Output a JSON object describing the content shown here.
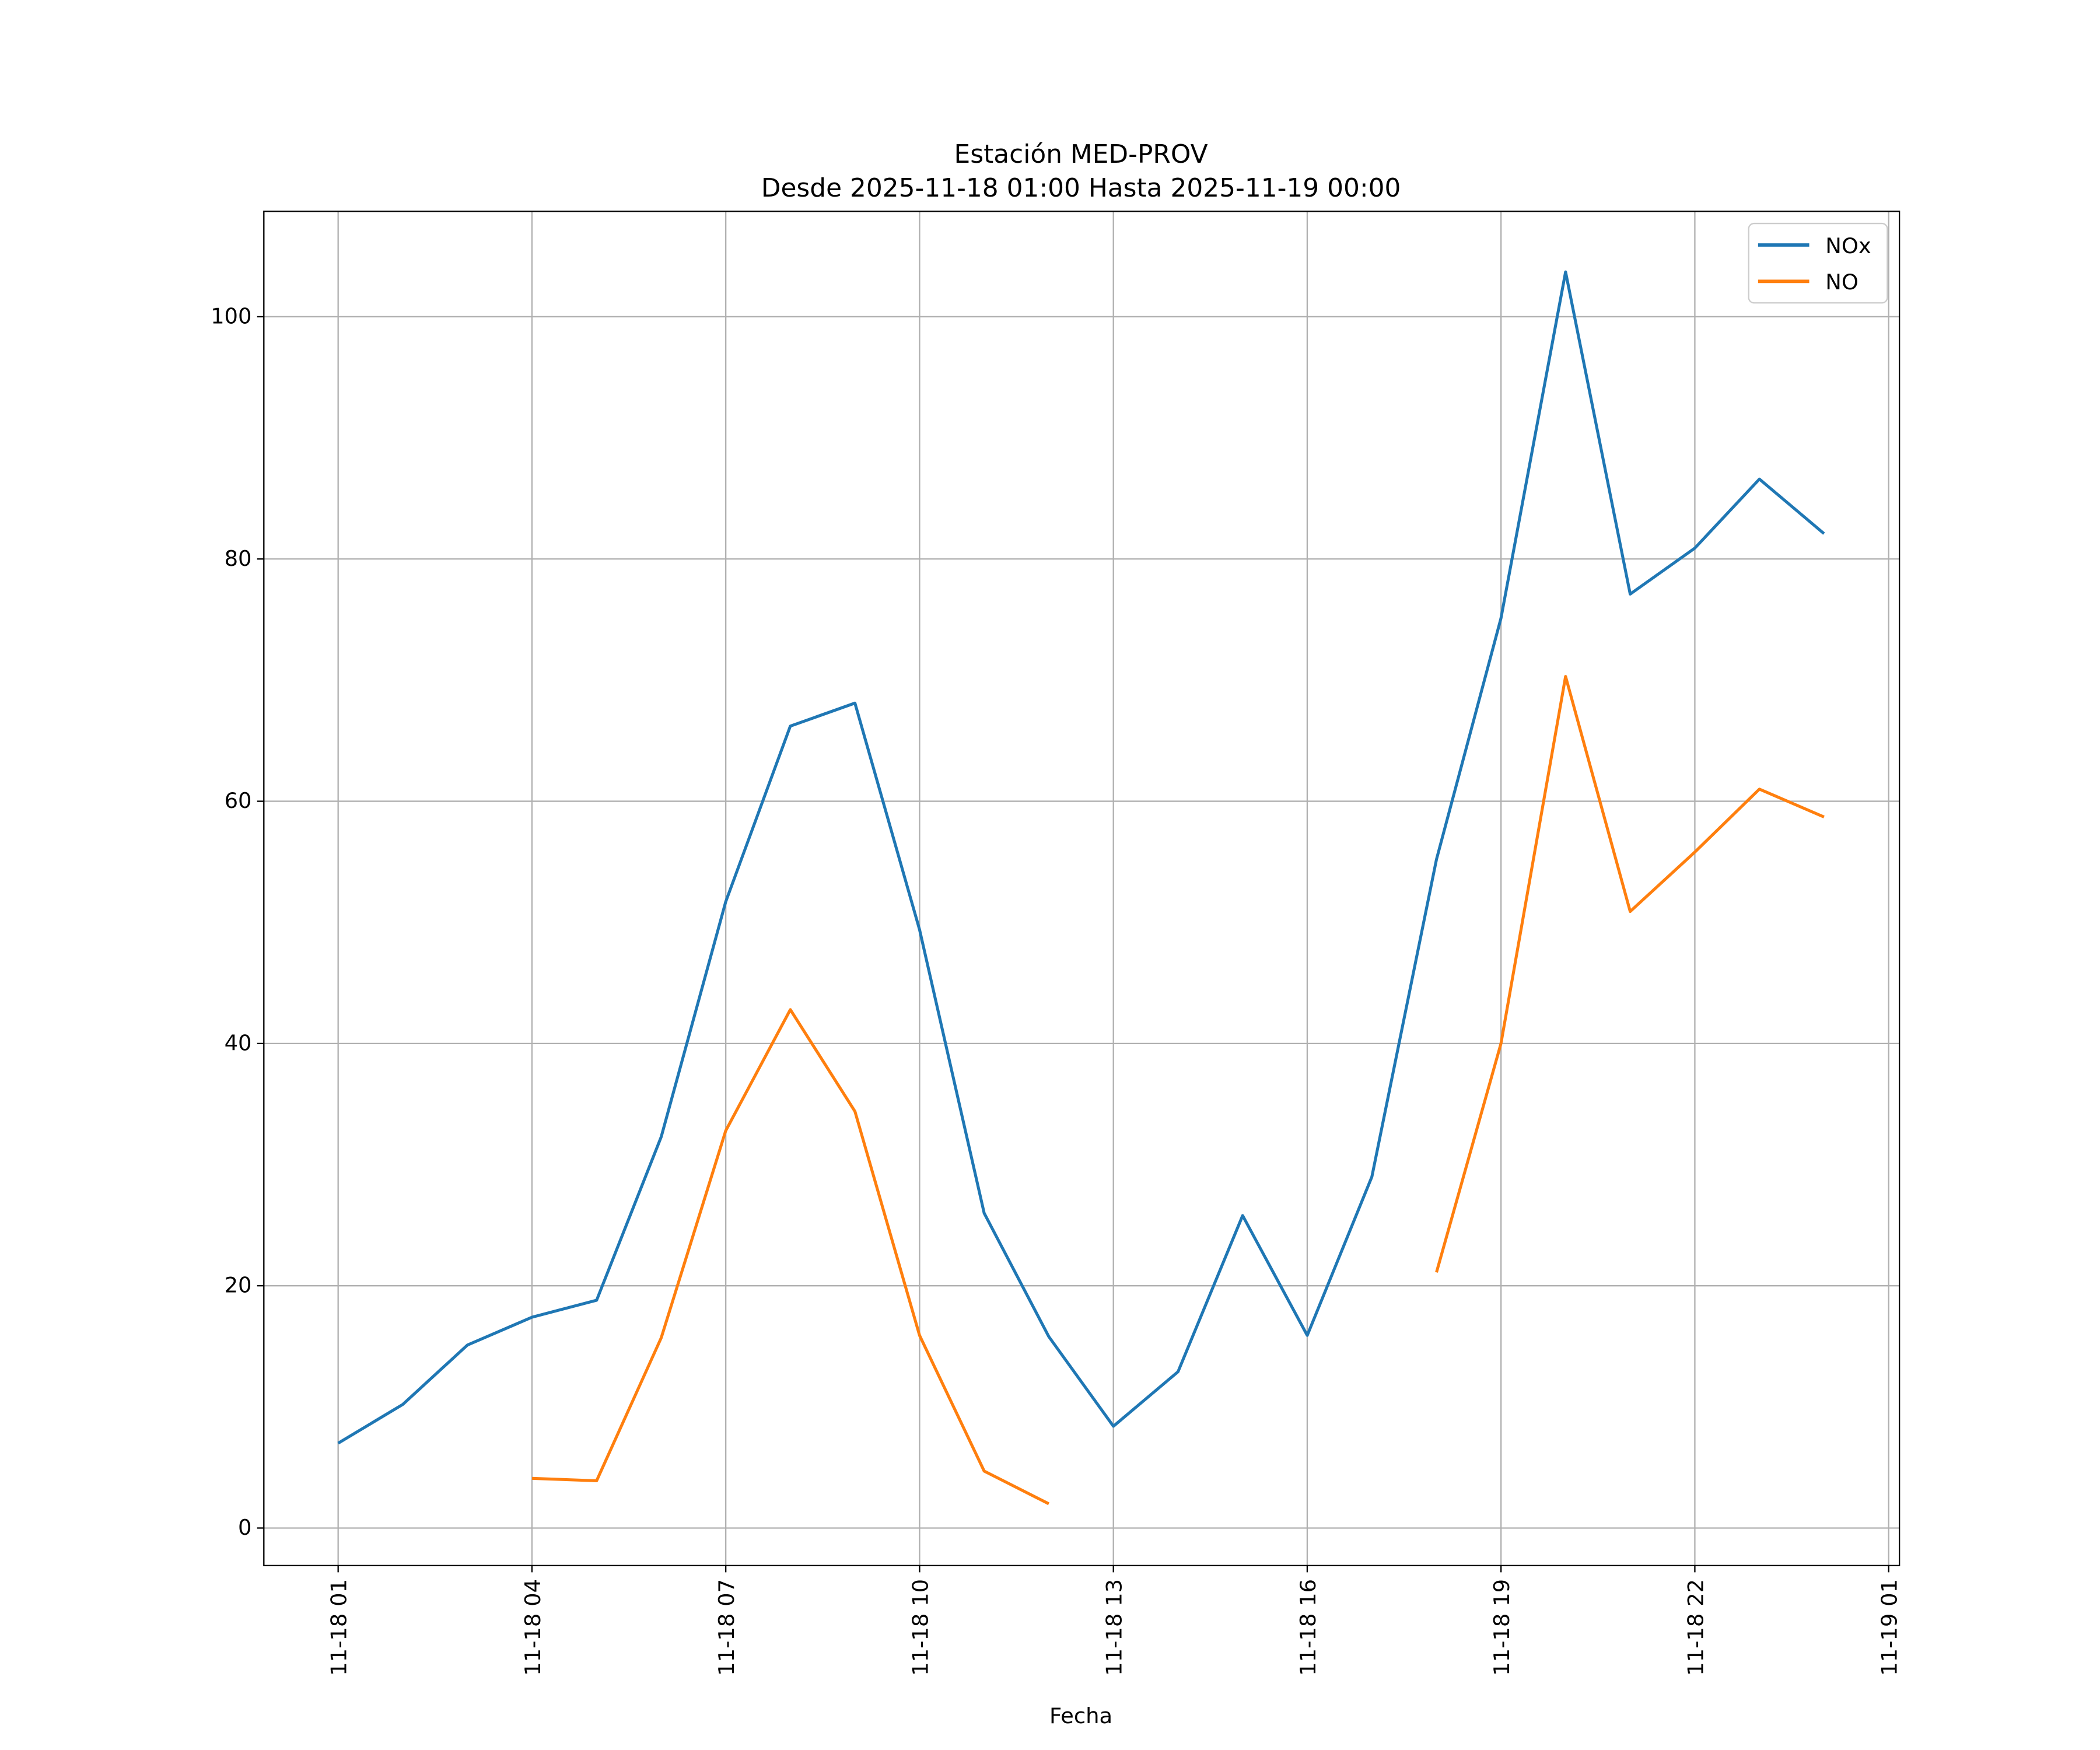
{
  "chart_data": {
    "type": "line",
    "title": "Estación MED-PROV",
    "subtitle": "Desde 2025-11-18 01:00 Hasta 2025-11-19 00:00",
    "xlabel": "Fecha",
    "ylabel": "",
    "x": [
      "2025-11-18 01:00",
      "2025-11-18 02:00",
      "2025-11-18 03:00",
      "2025-11-18 04:00",
      "2025-11-18 05:00",
      "2025-11-18 06:00",
      "2025-11-18 07:00",
      "2025-11-18 08:00",
      "2025-11-18 09:00",
      "2025-11-18 10:00",
      "2025-11-18 11:00",
      "2025-11-18 12:00",
      "2025-11-18 13:00",
      "2025-11-18 14:00",
      "2025-11-18 15:00",
      "2025-11-18 16:00",
      "2025-11-18 17:00",
      "2025-11-18 18:00",
      "2025-11-18 19:00",
      "2025-11-18 20:00",
      "2025-11-18 21:00",
      "2025-11-18 22:00",
      "2025-11-18 23:00",
      "2025-11-19 00:00"
    ],
    "series": [
      {
        "name": "NOx",
        "color": "#1f77b4",
        "values": [
          7.0,
          10.2,
          15.1,
          17.4,
          18.8,
          32.3,
          51.7,
          66.2,
          68.1,
          49.4,
          26.0,
          15.8,
          8.4,
          12.9,
          25.8,
          15.9,
          29.0,
          55.2,
          75.1,
          103.7,
          77.1,
          80.9,
          86.6,
          82.1
        ]
      },
      {
        "name": "NO",
        "color": "#ff7f0e",
        "values": [
          null,
          null,
          null,
          4.1,
          3.9,
          15.7,
          32.8,
          42.8,
          34.4,
          15.9,
          4.7,
          2.0,
          null,
          null,
          null,
          null,
          null,
          21.1,
          40.0,
          70.3,
          50.9,
          55.8,
          61.0,
          58.7
        ]
      }
    ],
    "xticks": [
      {
        "at": "2025-11-18 01:00",
        "label": "11-18 01"
      },
      {
        "at": "2025-11-18 04:00",
        "label": "11-18 04"
      },
      {
        "at": "2025-11-18 07:00",
        "label": "11-18 07"
      },
      {
        "at": "2025-11-18 10:00",
        "label": "11-18 10"
      },
      {
        "at": "2025-11-18 13:00",
        "label": "11-18 13"
      },
      {
        "at": "2025-11-18 16:00",
        "label": "11-18 16"
      },
      {
        "at": "2025-11-18 19:00",
        "label": "11-18 19"
      },
      {
        "at": "2025-11-18 22:00",
        "label": "11-18 22"
      },
      {
        "at": "2025-11-19 01:00",
        "label": "11-19 01"
      }
    ],
    "yticks": [
      0,
      20,
      40,
      60,
      80,
      100
    ],
    "xlim": [
      "2025-11-17 23:51",
      "2025-11-19 01:10"
    ],
    "ylim": [
      -3.1,
      108.7
    ],
    "grid": true,
    "legend": "top-right"
  }
}
